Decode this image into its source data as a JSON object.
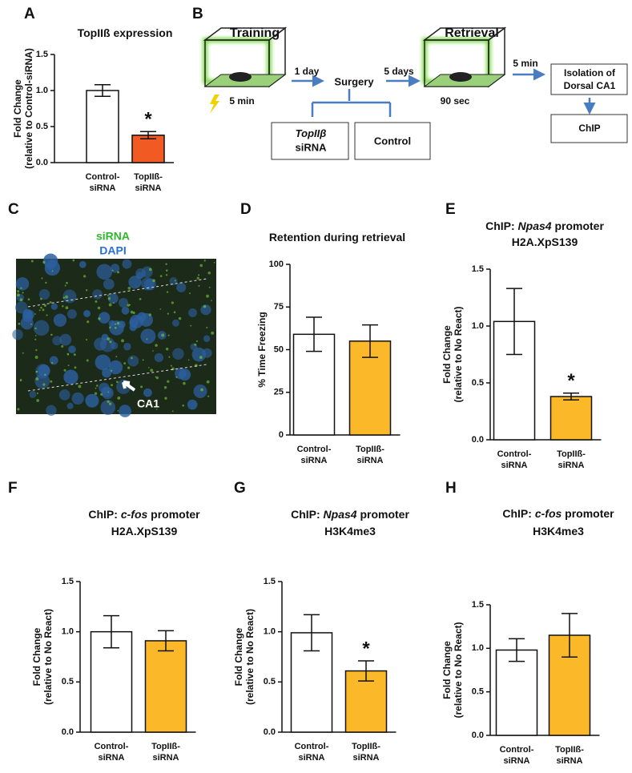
{
  "panel_labels": [
    "A",
    "B",
    "C",
    "D",
    "E",
    "F",
    "G",
    "H"
  ],
  "diagram": {
    "training": "Training",
    "training_time": "5 min",
    "day1": "1 day",
    "surgery": "Surgery",
    "days5": "5 days",
    "retrieval": "Retrieval",
    "retrieval_time": "90 sec",
    "min5": "5 min",
    "isolation": [
      "Isolation of",
      "Dorsal CA1"
    ],
    "chip": "ChIP",
    "topii_sirna": [
      {
        "text": "TopIIβ",
        "italic": true
      },
      {
        "text": "siRNA"
      }
    ],
    "control": "Control"
  },
  "image": {
    "sirna": "siRNA",
    "dapi": "DAPI",
    "ca1": "CA1"
  },
  "chart_data": [
    {
      "type": "bar",
      "title": [
        [
          {
            "text": "TopIIß expression"
          }
        ]
      ],
      "ylabel": [
        "Fold Change",
        "(relative to Control-siRNA)"
      ],
      "categories": [
        [
          "Control-",
          "siRNA"
        ],
        [
          "TopIIß-",
          "siRNA"
        ]
      ],
      "values": [
        1.0,
        0.38
      ],
      "errors": [
        0.08,
        0.05
      ],
      "colors": [
        "#ffffff",
        "#f15a22"
      ],
      "value_annotations": [
        null,
        "*"
      ],
      "ylim": [
        0,
        1.5
      ],
      "yticks": [
        {
          "value": 0,
          "label": "0.0"
        },
        {
          "value": 0.5,
          "label": "0.5"
        },
        {
          "value": 1,
          "label": "1.0"
        },
        {
          "value": 1.5,
          "label": "1.5"
        }
      ]
    },
    {
      "type": "bar",
      "title": [
        [
          {
            "text": "Retention during retrieval"
          }
        ]
      ],
      "ylabel": [
        "% Time Freezing"
      ],
      "categories": [
        [
          "Control-",
          "siRNA"
        ],
        [
          "TopIIß-",
          "siRNA"
        ]
      ],
      "values": [
        59,
        55
      ],
      "errors": [
        10,
        9.5
      ],
      "colors": [
        "#ffffff",
        "#fbb829"
      ],
      "value_annotations": [
        null,
        null
      ],
      "ylim": [
        0,
        100
      ],
      "yticks": [
        0,
        25,
        50,
        75,
        100
      ]
    },
    {
      "type": "bar",
      "title": [
        [
          {
            "text": "ChIP: "
          },
          {
            "text": "Npas4",
            "italic": true
          },
          {
            "text": " promoter"
          }
        ],
        [
          {
            "text": "H2A.XpS139"
          }
        ]
      ],
      "ylabel": [
        "Fold Change",
        "(relative to No React)"
      ],
      "categories": [
        [
          "Control-",
          "siRNA"
        ],
        [
          "TopIIß-",
          "siRNA"
        ]
      ],
      "values": [
        1.04,
        0.38
      ],
      "errors": [
        0.29,
        0.03
      ],
      "colors": [
        "#ffffff",
        "#fbb829"
      ],
      "value_annotations": [
        null,
        "*"
      ],
      "ylim": [
        0,
        1.5
      ],
      "yticks": [
        {
          "value": 0,
          "label": "0.0"
        },
        {
          "value": 0.5,
          "label": "0.5"
        },
        {
          "value": 1,
          "label": "1.0"
        },
        {
          "value": 1.5,
          "label": "1.5"
        }
      ]
    },
    {
      "type": "bar",
      "title": [
        [
          {
            "text": "ChIP: "
          },
          {
            "text": "c-fos",
            "italic": true
          },
          {
            "text": " promoter"
          }
        ],
        [
          {
            "text": "H2A.XpS139"
          }
        ]
      ],
      "ylabel": [
        "Fold Change",
        "(relative to No React)"
      ],
      "categories": [
        [
          "Control-",
          "siRNA"
        ],
        [
          "TopIIß-",
          "siRNA"
        ]
      ],
      "values": [
        1.0,
        0.91
      ],
      "errors": [
        0.16,
        0.1
      ],
      "colors": [
        "#ffffff",
        "#fbb829"
      ],
      "value_annotations": [
        null,
        null
      ],
      "ylim": [
        0,
        1.5
      ],
      "yticks": [
        {
          "value": 0,
          "label": "0.0"
        },
        {
          "value": 0.5,
          "label": "0.5"
        },
        {
          "value": 1,
          "label": "1.0"
        },
        {
          "value": 1.5,
          "label": "1.5"
        }
      ]
    },
    {
      "type": "bar",
      "title": [
        [
          {
            "text": "ChIP: "
          },
          {
            "text": "Npas4",
            "italic": true
          },
          {
            "text": " promoter"
          }
        ],
        [
          {
            "text": "H3K4me3"
          }
        ]
      ],
      "ylabel": [
        "Fold Change",
        "(relative to No React)"
      ],
      "categories": [
        [
          "Control-",
          "siRNA"
        ],
        [
          "TopIIß-",
          "siRNA"
        ]
      ],
      "values": [
        0.99,
        0.61
      ],
      "errors": [
        0.18,
        0.1
      ],
      "colors": [
        "#ffffff",
        "#fbb829"
      ],
      "value_annotations": [
        null,
        "*"
      ],
      "ylim": [
        0,
        1.5
      ],
      "yticks": [
        {
          "value": 0,
          "label": "0.0"
        },
        {
          "value": 0.5,
          "label": "0.5"
        },
        {
          "value": 1,
          "label": "1.0"
        },
        {
          "value": 1.5,
          "label": "1.5"
        }
      ]
    },
    {
      "type": "bar",
      "title": [
        [
          {
            "text": "ChIP: "
          },
          {
            "text": "c-fos",
            "italic": true
          },
          {
            "text": " promoter"
          }
        ],
        [
          {
            "text": "H3K4me3"
          }
        ]
      ],
      "ylabel": [
        "Fold Change",
        "(relative to No React)"
      ],
      "categories": [
        [
          "Control-",
          "siRNA"
        ],
        [
          "TopIIß-",
          "siRNA"
        ]
      ],
      "values": [
        0.98,
        1.15
      ],
      "errors": [
        0.13,
        0.25
      ],
      "colors": [
        "#ffffff",
        "#fbb829"
      ],
      "value_annotations": [
        null,
        null
      ],
      "ylim": [
        0,
        1.5
      ],
      "yticks": [
        {
          "value": 0,
          "label": "0.0"
        },
        {
          "value": 0.5,
          "label": "0.5"
        },
        {
          "value": 1,
          "label": "1.0"
        },
        {
          "value": 1.5,
          "label": "1.5"
        }
      ]
    }
  ]
}
